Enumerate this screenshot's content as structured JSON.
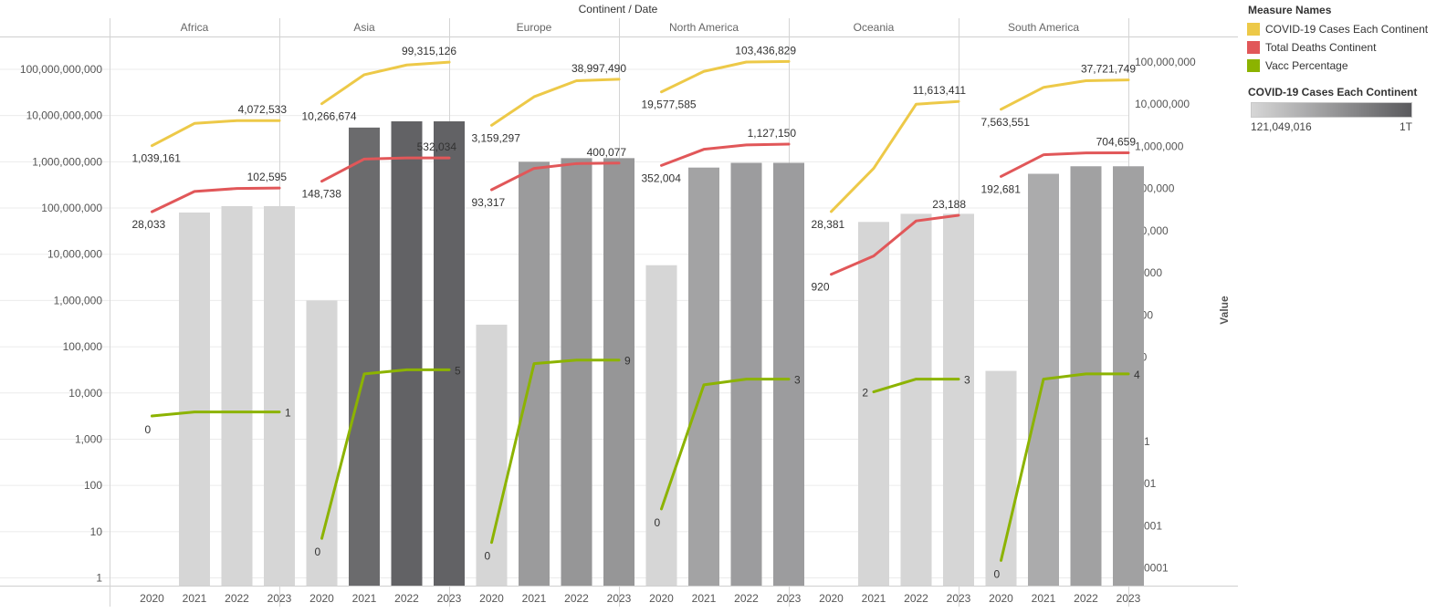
{
  "chart_data": {
    "type": "bar",
    "title": "Continent / Date",
    "panels": [
      "Africa",
      "Asia",
      "Europe",
      "North America",
      "Oceania",
      "South America"
    ],
    "categories": [
      "2020",
      "2021",
      "2022",
      "2023"
    ],
    "scale": "log",
    "left_axis": {
      "ticks": [
        1,
        10,
        100,
        1000,
        10000,
        100000,
        1000000,
        10000000,
        100000000,
        1000000000,
        10000000000,
        100000000000
      ],
      "tick_labels": [
        "1",
        "10",
        "100",
        "1,000",
        "10,000",
        "100,000",
        "1,000,000",
        "10,000,000",
        "100,000,000",
        "1,000,000,000",
        "10,000,000,000",
        "100,000,000,000"
      ]
    },
    "right_axis": {
      "label": "Value",
      "ticks": [
        0.0001,
        0.001,
        0.01,
        0.1,
        1,
        10,
        100,
        1000,
        10000,
        100000,
        1000000,
        10000000,
        100000000
      ],
      "tick_labels": [
        "0.0001",
        "0.001",
        "0.01",
        "0.1",
        "1",
        "10",
        "100",
        "1,000",
        "10,000",
        "100,000",
        "1,000,000",
        "10,000,000",
        "100,000,000"
      ]
    },
    "bar_series": {
      "name": "COVID-19 Cases Each Continent",
      "values": {
        "Africa": [
          null,
          80000000,
          110000000,
          110000000
        ],
        "Asia": [
          1000000,
          5500000000,
          7500000000,
          7500000000
        ],
        "Europe": [
          300000,
          1000000000,
          1200000000,
          1200000000
        ],
        "North America": [
          5800000,
          750000000,
          950000000,
          950000000
        ],
        "Oceania": [
          null,
          50000000,
          75000000,
          75000000
        ],
        "South America": [
          30000,
          550000000,
          800000000,
          800000000
        ]
      }
    },
    "color_scale": {
      "title": "COVID-19 Cases Each Continent",
      "min_label": "121,049,016",
      "max_label": "1T"
    },
    "line_series": [
      {
        "name": "COVID-19 Cases Each Continent",
        "color": "#edc948",
        "axis": "right",
        "values": {
          "Africa": [
            1039161,
            3500000,
            4072533,
            4072533
          ],
          "Asia": [
            10266674,
            50000000,
            85000000,
            99315126
          ],
          "Europe": [
            3159297,
            15000000,
            36000000,
            38997490
          ],
          "North America": [
            19577585,
            60000000,
            100000000,
            103436829
          ],
          "Oceania": [
            28381,
            300000,
            10000000,
            11613411
          ],
          "South America": [
            7563551,
            25000000,
            36000000,
            37721749
          ]
        },
        "labels": {
          "Africa": [
            "1,039,161",
            null,
            null,
            "4,072,533"
          ],
          "Asia": [
            "10,266,674",
            null,
            null,
            "99,315,126"
          ],
          "Europe": [
            "3,159,297",
            null,
            null,
            "38,997,490"
          ],
          "North America": [
            "19,577,585",
            null,
            null,
            "103,436,829"
          ],
          "Oceania": [
            "28,381",
            null,
            null,
            "11,613,411"
          ],
          "South America": [
            "7,563,551",
            null,
            null,
            "37,721,749"
          ]
        }
      },
      {
        "name": "Total Deaths Continent",
        "color": "#e15759",
        "axis": "right",
        "values": {
          "Africa": [
            28033,
            85000,
            100000,
            102595
          ],
          "Asia": [
            148738,
            500000,
            530000,
            532034
          ],
          "Europe": [
            93317,
            300000,
            390000,
            400077
          ],
          "North America": [
            352004,
            850000,
            1080000,
            1127150
          ],
          "Oceania": [
            920,
            2500,
            17000,
            23188
          ],
          "South America": [
            192681,
            630000,
            700000,
            704659
          ]
        },
        "labels": {
          "Africa": [
            "28,033",
            null,
            null,
            "102,595"
          ],
          "Asia": [
            "148,738",
            null,
            null,
            "532,034"
          ],
          "Europe": [
            "93,317",
            null,
            null,
            "400,077"
          ],
          "North America": [
            "352,004",
            null,
            null,
            "1,127,150"
          ],
          "Oceania": [
            "920",
            null,
            null,
            "23,188"
          ],
          "South America": [
            "192,681",
            null,
            null,
            "704,659"
          ]
        }
      },
      {
        "name": "Vacc Percentage",
        "color": "#8cb300",
        "axis": "right",
        "values": {
          "Africa": [
            0.4,
            0.5,
            0.5,
            0.5
          ],
          "Asia": [
            0.0005,
            4,
            5,
            5
          ],
          "Europe": [
            0.0004,
            7,
            8.5,
            8.5
          ],
          "North America": [
            0.0025,
            2.2,
            3,
            3
          ],
          "Oceania": [
            null,
            1.5,
            3,
            3
          ],
          "South America": [
            0.00015,
            3,
            4,
            4
          ]
        },
        "labels": {
          "Africa": [
            "0",
            null,
            null,
            "1"
          ],
          "Asia": [
            "0",
            null,
            null,
            "5"
          ],
          "Europe": [
            "0",
            null,
            null,
            "9"
          ],
          "North America": [
            "0",
            null,
            null,
            "3"
          ],
          "Oceania": [
            null,
            "2",
            null,
            "3"
          ],
          "South America": [
            "0",
            null,
            null,
            "4"
          ]
        }
      }
    ],
    "legend": {
      "title": "Measure Names",
      "position": "right",
      "items": [
        {
          "label": "COVID-19 Cases Each Continent",
          "color": "#edc948"
        },
        {
          "label": "Total Deaths Continent",
          "color": "#e15759"
        },
        {
          "label": "Vacc Percentage",
          "color": "#8cb300"
        }
      ]
    }
  }
}
